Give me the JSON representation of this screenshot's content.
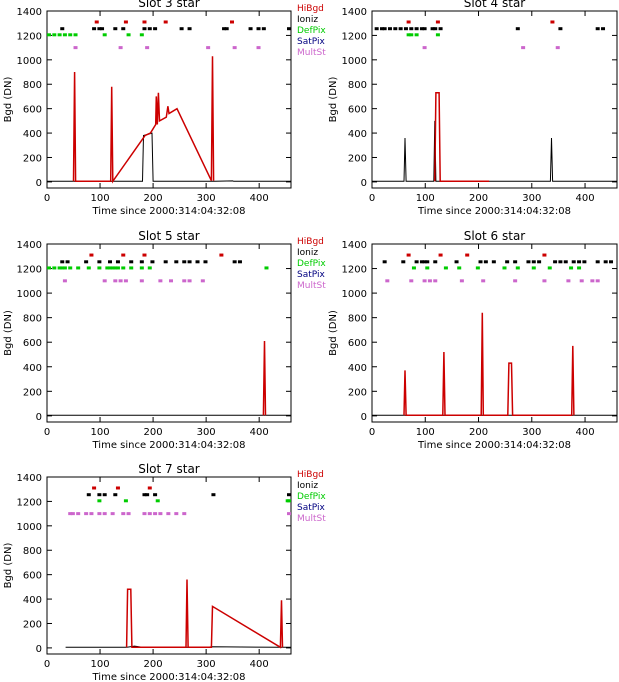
{
  "chart_data": [
    {
      "type": "line",
      "title": "Slot 3 star",
      "xlabel": "Time since 2000:314:04:32:08",
      "ylabel": "Bgd (DN)",
      "xlim": [
        0,
        460
      ],
      "ylim": [
        -50,
        1400
      ],
      "xticks": [
        0,
        100,
        200,
        300,
        400
      ],
      "yticks": [
        0,
        200,
        400,
        600,
        800,
        1000,
        1200,
        1400
      ],
      "legend": [
        {
          "name": "HiBgd",
          "color": "#cc0000"
        },
        {
          "name": "Ioniz",
          "color": "#000000"
        },
        {
          "name": "DefPix",
          "color": "#00cc00"
        },
        {
          "name": "SatPix",
          "color": "#000080"
        },
        {
          "name": "MultSt",
          "color": "#cc66cc"
        }
      ],
      "series": [
        {
          "color": "#000000",
          "points": [
            [
              0,
              5
            ],
            [
              48,
              5
            ],
            [
              55,
              5
            ],
            [
              60,
              5
            ],
            [
              118,
              5
            ],
            [
              122,
              5
            ],
            [
              180,
              5
            ],
            [
              182,
              380
            ],
            [
              198,
              400
            ],
            [
              200,
              5
            ],
            [
              210,
              5
            ],
            [
              310,
              5
            ],
            [
              316,
              5
            ],
            [
              350,
              8
            ],
            [
              352,
              5
            ],
            [
              460,
              5
            ]
          ]
        },
        {
          "color": "#cc0000",
          "points": [
            [
              50,
              5
            ],
            [
              52,
              900
            ],
            [
              54,
              5
            ],
            [
              120,
              5
            ],
            [
              122,
              780
            ],
            [
              124,
              5
            ],
            [
              185,
              380
            ],
            [
              195,
              400
            ],
            [
              205,
              470
            ],
            [
              206,
              700
            ],
            [
              208,
              470
            ],
            [
              210,
              730
            ],
            [
              212,
              500
            ],
            [
              225,
              530
            ],
            [
              228,
              620
            ],
            [
              230,
              560
            ],
            [
              245,
              600
            ],
            [
              310,
              10
            ],
            [
              312,
              1030
            ],
            [
              314,
              10
            ]
          ]
        }
      ],
      "flags": {
        "HiBgd": [
          90,
          145,
          180,
          220,
          345
        ],
        "Ioniz": [
          25,
          85,
          95,
          100,
          125,
          140,
          180,
          190,
          200,
          250,
          265,
          330,
          335,
          380,
          395,
          405,
          460
        ],
        "DefPix": [
          0,
          10,
          20,
          30,
          40,
          50,
          105,
          150,
          175
        ],
        "SatPix": [],
        "MultSt": [
          50,
          135,
          185,
          300,
          350,
          395
        ]
      }
    },
    {
      "type": "line",
      "title": "Slot 4 star",
      "xlabel": "Time since 2000:314:04:32:08",
      "ylabel": "Bgd (DN)",
      "xlim": [
        0,
        460
      ],
      "ylim": [
        -50,
        1400
      ],
      "xticks": [
        0,
        100,
        200,
        300,
        400
      ],
      "yticks": [
        0,
        200,
        400,
        600,
        800,
        1000,
        1200,
        1400
      ],
      "series": [
        {
          "color": "#000000",
          "points": [
            [
              0,
              5
            ],
            [
              60,
              5
            ],
            [
              62,
              360
            ],
            [
              64,
              5
            ],
            [
              116,
              5
            ],
            [
              118,
              500
            ],
            [
              120,
              5
            ],
            [
              335,
              5
            ],
            [
              337,
              360
            ],
            [
              339,
              5
            ],
            [
              460,
              5
            ]
          ]
        },
        {
          "color": "#cc0000",
          "points": [
            [
              118,
              5
            ],
            [
              120,
              730
            ],
            [
              126,
              730
            ],
            [
              128,
              5
            ],
            [
              220,
              5
            ]
          ]
        }
      ],
      "flags": {
        "HiBgd": [
          65,
          120,
          335
        ],
        "Ioniz": [
          5,
          15,
          20,
          30,
          40,
          50,
          60,
          70,
          80,
          90,
          95,
          110,
          115,
          125,
          270,
          350,
          420,
          430
        ],
        "DefPix": [
          65,
          70,
          80,
          120
        ],
        "SatPix": [],
        "MultSt": [
          95,
          280,
          345
        ]
      }
    },
    {
      "type": "line",
      "title": "Slot 5 star",
      "xlabel": "Time since 2000:314:04:32:08",
      "ylabel": "Bgd (DN)",
      "xlim": [
        0,
        460
      ],
      "ylim": [
        -50,
        1400
      ],
      "xticks": [
        0,
        100,
        200,
        300,
        400
      ],
      "yticks": [
        0,
        200,
        400,
        600,
        800,
        1000,
        1200,
        1400
      ],
      "series": [
        {
          "color": "#000000",
          "points": [
            [
              0,
              5
            ],
            [
              460,
              5
            ]
          ]
        },
        {
          "color": "#cc0000",
          "points": [
            [
              408,
              5
            ],
            [
              410,
              610
            ],
            [
              412,
              5
            ]
          ]
        }
      ],
      "flags": {
        "HiBgd": [
          80,
          140,
          180,
          325
        ],
        "Ioniz": [
          25,
          35,
          70,
          95,
          115,
          130,
          155,
          175,
          195,
          220,
          240,
          255,
          265,
          280,
          295,
          350,
          360
        ],
        "DefPix": [
          0,
          10,
          20,
          25,
          30,
          40,
          55,
          75,
          95,
          110,
          115,
          120,
          125,
          130,
          140,
          155,
          175,
          190,
          410
        ],
        "SatPix": [],
        "MultSt": [
          30,
          105,
          125,
          135,
          145,
          175,
          210,
          230,
          255,
          265,
          290
        ]
      }
    },
    {
      "type": "line",
      "title": "Slot 6 star",
      "xlabel": "Time since 2000:314:04:32:08",
      "ylabel": "Bgd (DN)",
      "xlim": [
        0,
        460
      ],
      "ylim": [
        -50,
        1400
      ],
      "xticks": [
        0,
        100,
        200,
        300,
        400
      ],
      "yticks": [
        0,
        200,
        400,
        600,
        800,
        1000,
        1200,
        1400
      ],
      "series": [
        {
          "color": "#000000",
          "points": [
            [
              0,
              5
            ],
            [
              460,
              5
            ]
          ]
        },
        {
          "color": "#cc0000",
          "points": [
            [
              60,
              5
            ],
            [
              62,
              370
            ],
            [
              64,
              5
            ],
            [
              133,
              5
            ],
            [
              135,
              520
            ],
            [
              137,
              5
            ],
            [
              205,
              5
            ],
            [
              207,
              840
            ],
            [
              209,
              5
            ],
            [
              255,
              5
            ],
            [
              257,
              430
            ],
            [
              262,
              430
            ],
            [
              264,
              5
            ],
            [
              375,
              5
            ],
            [
              377,
              570
            ],
            [
              379,
              5
            ]
          ]
        }
      ],
      "flags": {
        "HiBgd": [
          65,
          125,
          175,
          320
        ],
        "Ioniz": [
          20,
          55,
          80,
          90,
          95,
          100,
          115,
          155,
          200,
          210,
          225,
          250,
          265,
          290,
          300,
          310,
          340,
          350,
          360,
          375,
          385,
          395,
          420,
          435,
          445
        ],
        "DefPix": [
          75,
          100,
          135,
          160,
          195,
          245,
          270,
          300,
          330,
          370,
          385
        ],
        "SatPix": [],
        "MultSt": [
          25,
          70,
          95,
          105,
          115,
          165,
          205,
          265,
          320,
          365,
          390,
          410,
          420
        ]
      }
    },
    {
      "type": "line",
      "title": "Slot 7 star",
      "xlabel": "Time since 2000:314:04:32:08",
      "ylabel": "Bgd (DN)",
      "xlim": [
        0,
        460
      ],
      "ylim": [
        -50,
        1400
      ],
      "xticks": [
        0,
        100,
        200,
        300,
        400
      ],
      "yticks": [
        0,
        200,
        400,
        600,
        800,
        1000,
        1200,
        1400
      ],
      "series": [
        {
          "color": "#000000",
          "points": [
            [
              35,
              5
            ],
            [
              150,
              5
            ],
            [
              165,
              15
            ],
            [
              180,
              5
            ],
            [
              300,
              5
            ],
            [
              312,
              10
            ],
            [
              440,
              5
            ],
            [
              460,
              5
            ]
          ]
        },
        {
          "color": "#cc0000",
          "points": [
            [
              150,
              5
            ],
            [
              152,
              480
            ],
            [
              158,
              480
            ],
            [
              160,
              5
            ],
            [
              262,
              5
            ],
            [
              264,
              560
            ],
            [
              266,
              5
            ],
            [
              310,
              5
            ],
            [
              312,
              340
            ],
            [
              440,
              5
            ],
            [
              442,
              390
            ],
            [
              444,
              5
            ]
          ]
        }
      ],
      "flags": {
        "HiBgd": [
          85,
          130,
          190
        ],
        "Ioniz": [
          75,
          95,
          105,
          125,
          180,
          185,
          200,
          310,
          460
        ],
        "DefPix": [
          95,
          145,
          205,
          450,
          460
        ],
        "SatPix": [],
        "MultSt": [
          40,
          45,
          55,
          70,
          80,
          95,
          105,
          120,
          140,
          150,
          180,
          190,
          200,
          210,
          225,
          240,
          255,
          460
        ]
      }
    }
  ]
}
